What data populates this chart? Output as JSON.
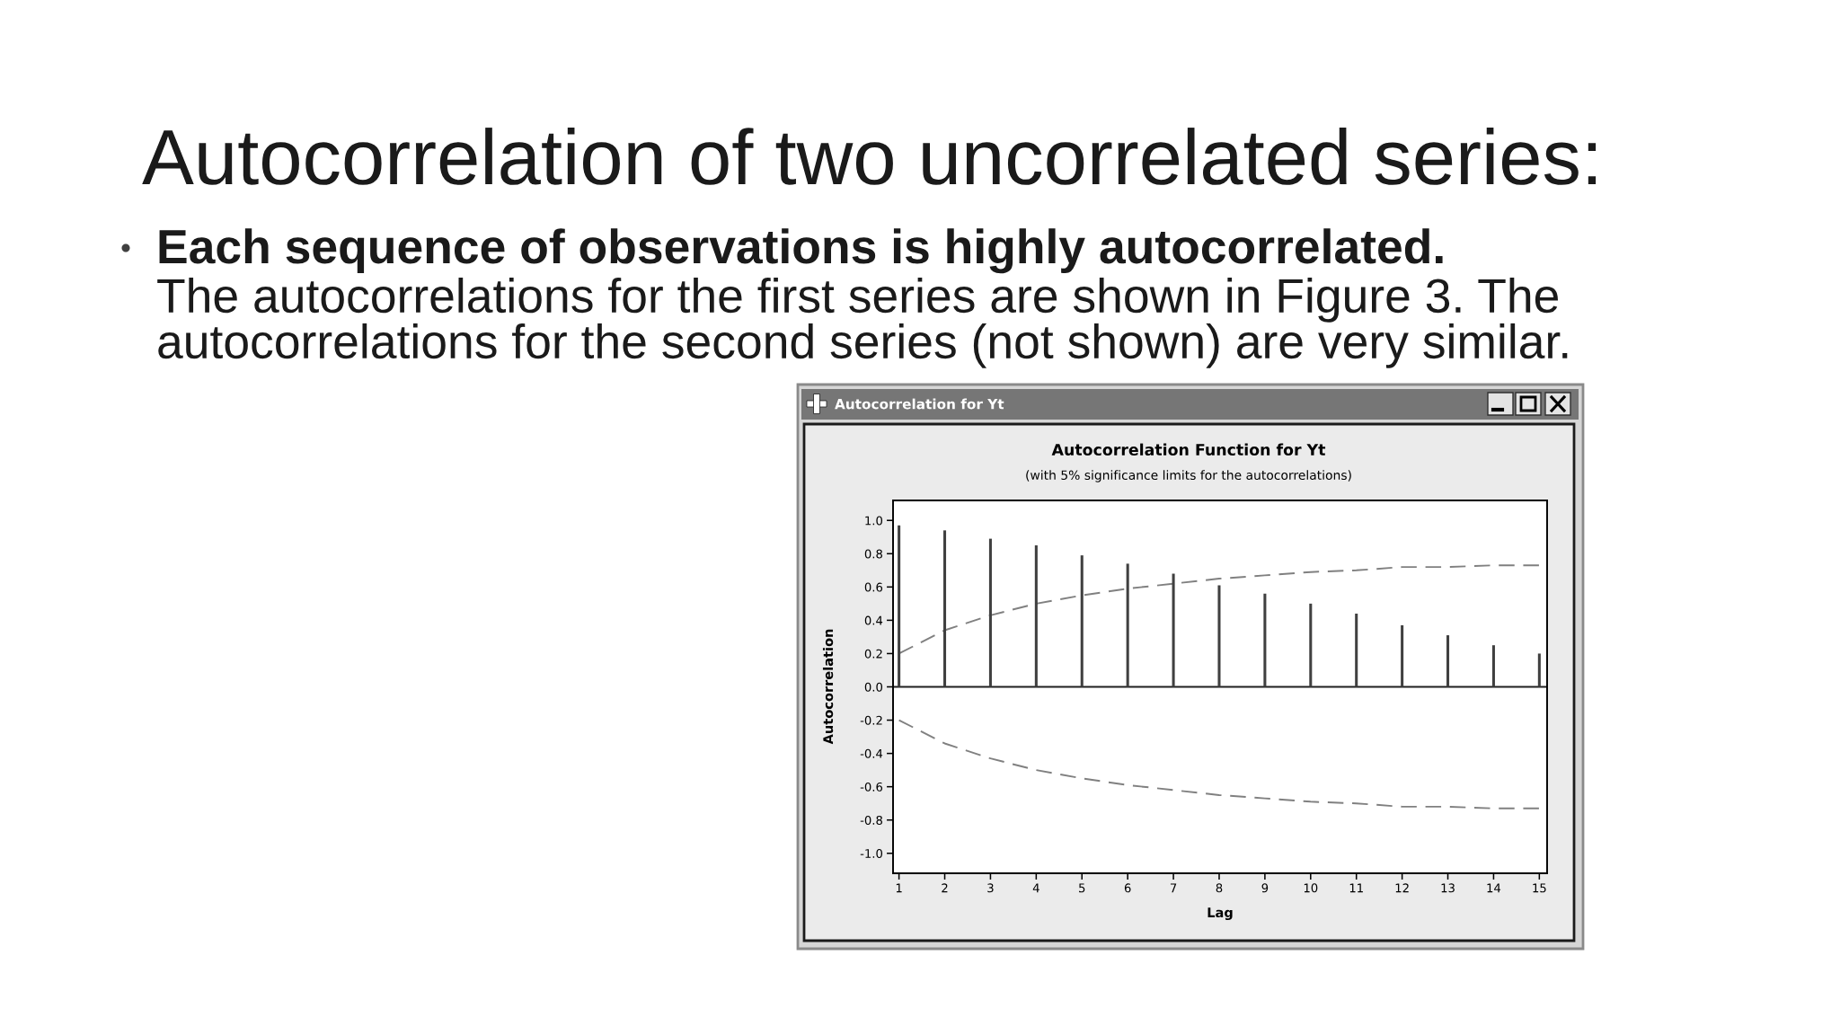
{
  "chart_data": {
    "type": "bar",
    "title": "Autocorrelation Function for Yt",
    "subtitle": "(with 5% significance limits for the autocorrelations)",
    "xlabel": "Lag",
    "ylabel": "Autocorrelation",
    "x": [
      1,
      2,
      3,
      4,
      5,
      6,
      7,
      8,
      9,
      10,
      11,
      12,
      13,
      14,
      15
    ],
    "series": [
      {
        "color": "#404040",
        "values": [
          0.97,
          0.94,
          0.89,
          0.85,
          0.79,
          0.74,
          0.68,
          0.61,
          0.56,
          0.5,
          0.44,
          0.37,
          0.31,
          0.25,
          0.2
        ]
      },
      {
        "type": "line",
        "color": "#808080",
        "values": [
          0.2,
          0.34,
          0.43,
          0.5,
          0.55,
          0.59,
          0.62,
          0.65,
          0.67,
          0.69,
          0.7,
          0.72,
          0.72,
          0.73,
          0.73
        ]
      },
      {
        "type": "line",
        "color": "#808080",
        "values": [
          -0.2,
          -0.34,
          -0.43,
          -0.5,
          -0.55,
          -0.59,
          -0.62,
          -0.65,
          -0.67,
          -0.69,
          -0.7,
          -0.72,
          -0.72,
          -0.73,
          -0.73
        ]
      }
    ],
    "line_style": "dashed",
    "xlim": [
      0.87,
      15.17
    ],
    "xticks": [
      1,
      2,
      3,
      4,
      5,
      6,
      7,
      8,
      9,
      10,
      11,
      12,
      13,
      14,
      15
    ],
    "ylim": [
      -1.12,
      1.12
    ],
    "yticks": [
      {
        "value": -1,
        "label": "-1.0"
      },
      {
        "value": -0.8,
        "label": "-0.8"
      },
      {
        "value": -0.6,
        "label": "-0.6"
      },
      {
        "value": -0.4,
        "label": "-0.4"
      },
      {
        "value": -0.2,
        "label": "-0.2"
      },
      {
        "value": 0,
        "label": "0.0"
      },
      {
        "value": 0.2,
        "label": "0.2"
      },
      {
        "value": 0.4,
        "label": "0.4"
      },
      {
        "value": 0.6,
        "label": "0.6"
      },
      {
        "value": 0.8,
        "label": "0.8"
      },
      {
        "value": 1,
        "label": "1.0"
      }
    ],
    "ref_lines": [
      {
        "axis": "y",
        "value": 0,
        "color": "#202020"
      }
    ],
    "annotations": [
      "Autocorrelation of two uncorrelated series:",
      "Each sequence of observations is highly autocorrelated.",
      "The autocorrelations for the first series are shown in Figure 3. The autocorrelations for the second series (not shown) are very similar.",
      "Autocorrelation for Yt"
    ]
  }
}
